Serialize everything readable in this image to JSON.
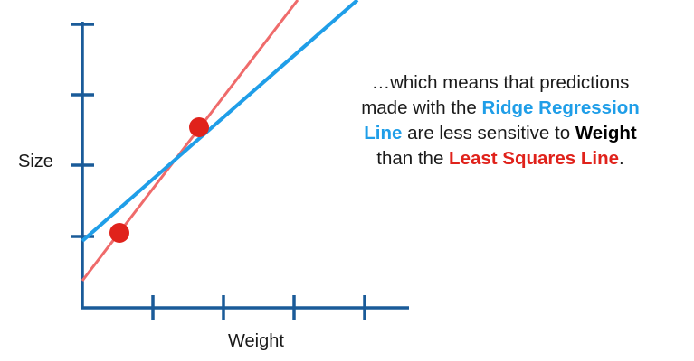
{
  "axes": {
    "y_label": "Size",
    "x_label": "Weight"
  },
  "caption": {
    "part1": "…which means that predictions made with the ",
    "ridge": "Ridge Regression Line",
    "part2": " are less sensitive to ",
    "weight": "Weight",
    "part3": " than the ",
    "lsq": "Least Squares Line",
    "part4": "."
  },
  "colors": {
    "axis": "#1a5b99",
    "ridge_line": "#1f9ee8",
    "least_squares_line": "#ef6b6b",
    "points": "#e0221b"
  }
}
